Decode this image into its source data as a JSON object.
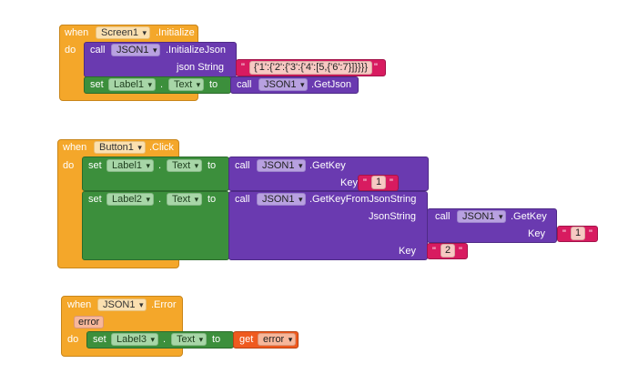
{
  "keywords": {
    "when": "when",
    "do": "do",
    "call": "call",
    "set": "set",
    "to": "to",
    "get": "get",
    "dot": ".",
    "quote": "\""
  },
  "block1": {
    "component": "Screen1",
    "event": ".Initialize",
    "call1_component": "JSON1",
    "call1_method": ".InitializeJson",
    "call1_param": "json String",
    "json_string": "{'1':{'2':{'3':{'4':[5,{'6':7}]}}}}",
    "set_component": "Label1",
    "set_property": "Text",
    "call2_component": "JSON1",
    "call2_method": ".GetJson"
  },
  "block2": {
    "component": "Button1",
    "event": ".Click",
    "set1_component": "Label1",
    "set1_property": "Text",
    "call1_component": "JSON1",
    "call1_method": ".GetKey",
    "call1_param": "Key",
    "call1_key": "1",
    "set2_component": "Label2",
    "set2_property": "Text",
    "call2_component": "JSON1",
    "call2_method": ".GetKeyFromJsonString",
    "call2_param1": "JsonString",
    "call3_component": "JSON1",
    "call3_method": ".GetKey",
    "call3_param": "Key",
    "call3_key": "1",
    "call2_param2": "Key",
    "call2_key": "2"
  },
  "block3": {
    "component": "JSON1",
    "event": ".Error",
    "param": "error",
    "set_component": "Label3",
    "set_property": "Text",
    "get_var": "error"
  }
}
